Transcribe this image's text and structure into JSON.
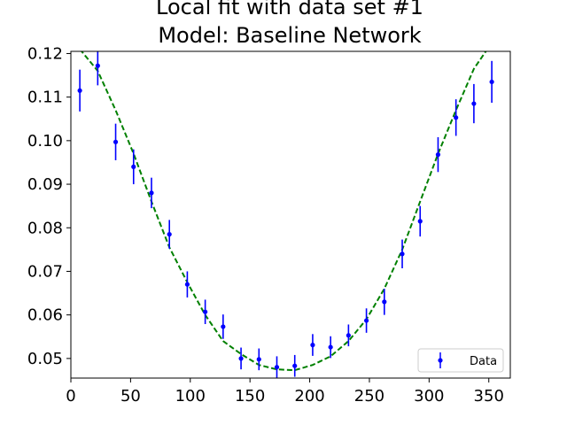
{
  "chart_data": {
    "type": "scatter",
    "title_line1": "Local fit with data set #1",
    "title_line2": "Model: Baseline Network",
    "xlabel": "",
    "ylabel": "",
    "xlim": [
      0,
      368
    ],
    "ylim": [
      0.0455,
      0.1205
    ],
    "x_ticks": [
      0,
      50,
      100,
      150,
      200,
      250,
      300,
      350
    ],
    "x_tick_labels": [
      "0",
      "50",
      "100",
      "150",
      "200",
      "250",
      "300",
      "350"
    ],
    "y_ticks": [
      0.05,
      0.06,
      0.07,
      0.08,
      0.09,
      0.1,
      0.11,
      0.12
    ],
    "y_tick_labels": [
      "0.05",
      "0.06",
      "0.07",
      "0.08",
      "0.09",
      "0.10",
      "0.11",
      "0.12"
    ],
    "grid": false,
    "legend": {
      "position": "lower-right",
      "entries": [
        "Data"
      ]
    },
    "series": [
      {
        "name": "Data",
        "kind": "errorbar",
        "color": "#0000ff",
        "x": [
          7.5,
          22.5,
          37.5,
          52.5,
          67.5,
          82.5,
          97.5,
          112.5,
          127.5,
          142.5,
          157.5,
          172.5,
          187.5,
          202.5,
          217.5,
          232.5,
          247.5,
          262.5,
          277.5,
          292.5,
          307.5,
          322.5,
          337.5,
          352.5
        ],
        "y": [
          0.1115,
          0.1172,
          0.0997,
          0.094,
          0.088,
          0.0785,
          0.067,
          0.0607,
          0.0573,
          0.05,
          0.0498,
          0.048,
          0.0483,
          0.0531,
          0.0526,
          0.0553,
          0.0587,
          0.063,
          0.074,
          0.0815,
          0.0968,
          0.1053,
          0.1085,
          0.1135
        ],
        "yerr": [
          0.0048,
          0.0045,
          0.0042,
          0.004,
          0.0035,
          0.0033,
          0.003,
          0.0028,
          0.0028,
          0.0025,
          0.0025,
          0.0025,
          0.0025,
          0.0025,
          0.0025,
          0.0025,
          0.0028,
          0.003,
          0.0033,
          0.0035,
          0.004,
          0.0042,
          0.0045,
          0.0048
        ]
      },
      {
        "kind": "fit-line",
        "color": "#008000",
        "style": "dashed",
        "x": [
          7.5,
          22.5,
          37.5,
          52.5,
          67.5,
          82.5,
          97.5,
          112.5,
          127.5,
          142.5,
          157.5,
          172.5,
          187.5,
          202.5,
          217.5,
          232.5,
          247.5,
          262.5,
          277.5,
          292.5,
          307.5,
          322.5,
          337.5,
          352.5
        ],
        "y": [
          0.121,
          0.116,
          0.107,
          0.097,
          0.086,
          0.0755,
          0.0675,
          0.06,
          0.054,
          0.051,
          0.0485,
          0.0475,
          0.0473,
          0.0485,
          0.0505,
          0.054,
          0.059,
          0.066,
          0.075,
          0.086,
          0.097,
          0.107,
          0.1165,
          0.1225
        ]
      }
    ]
  }
}
